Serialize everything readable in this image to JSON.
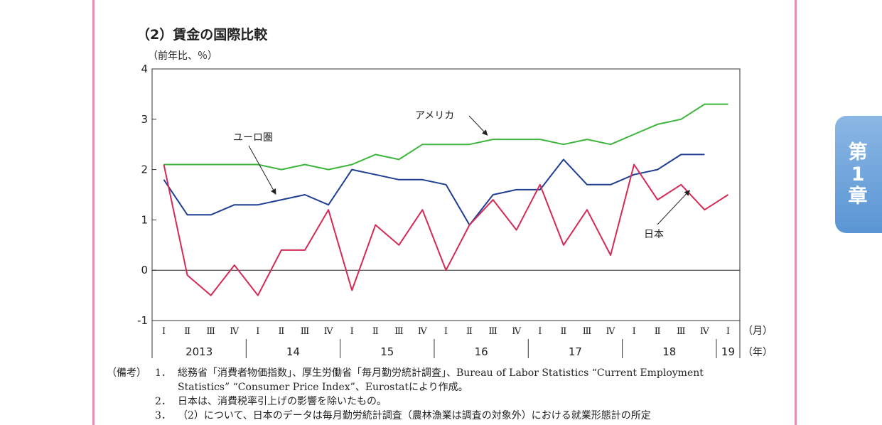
{
  "page": {
    "section_title": "（2）賃金の国際比較",
    "chapter_tab": [
      "第",
      "1",
      "章"
    ],
    "notes_label": "（備考）",
    "notes": [
      {
        "num": "1．",
        "lines": [
          "総務省「消費者物価指数」、厚生労働省「毎月勤労統計調査」、Bureau of Labor Statistics “Current Employment",
          "Statistics” “Consumer Price Index”、Eurostatにより作成。"
        ]
      },
      {
        "num": "2．",
        "lines": [
          "日本は、消費税率引上げの影響を除いたもの。"
        ]
      },
      {
        "num": "3．",
        "lines": [
          "（2）について、日本のデータは毎月勤労統計調査（農林漁業は調査の対象外）における就業形態計の所定"
        ]
      }
    ]
  },
  "chart_data": {
    "type": "line",
    "title": "",
    "ylabel": "（前年比、％）",
    "ylim": [
      -1,
      4
    ],
    "yticks": [
      4,
      3,
      2,
      1,
      0,
      -1
    ],
    "grid": false,
    "quarters": [
      "Ⅰ",
      "Ⅱ",
      "Ⅲ",
      "Ⅳ",
      "Ⅰ",
      "Ⅱ",
      "Ⅲ",
      "Ⅳ",
      "Ⅰ",
      "Ⅱ",
      "Ⅲ",
      "Ⅳ",
      "Ⅰ",
      "Ⅱ",
      "Ⅲ",
      "Ⅳ",
      "Ⅰ",
      "Ⅱ",
      "Ⅲ",
      "Ⅳ",
      "Ⅰ",
      "Ⅱ",
      "Ⅲ",
      "Ⅳ",
      "Ⅰ"
    ],
    "years": [
      "2013",
      "14",
      "15",
      "16",
      "17",
      "18",
      "19"
    ],
    "x_unit_month": "（月）",
    "x_unit_year": "（年）",
    "series": [
      {
        "name": "アメリカ",
        "color": "#3db53d",
        "values": [
          2.1,
          2.1,
          2.1,
          2.1,
          2.1,
          2.0,
          2.1,
          2.0,
          2.1,
          2.3,
          2.2,
          2.5,
          2.5,
          2.5,
          2.6,
          2.6,
          2.6,
          2.5,
          2.6,
          2.5,
          2.7,
          2.9,
          3.0,
          3.3,
          3.3
        ]
      },
      {
        "name": "ユーロ圏",
        "color": "#1f3f93",
        "values": [
          1.8,
          1.1,
          1.1,
          1.3,
          1.3,
          1.4,
          1.5,
          1.3,
          2.0,
          1.9,
          1.8,
          1.8,
          1.7,
          0.9,
          1.5,
          1.6,
          1.6,
          2.2,
          1.7,
          1.7,
          1.9,
          2.0,
          2.3,
          2.3,
          null
        ]
      },
      {
        "name": "日本",
        "color": "#d42a55",
        "values": [
          2.1,
          -0.1,
          -0.5,
          0.1,
          -0.5,
          0.4,
          0.4,
          1.2,
          -0.4,
          0.9,
          0.5,
          1.2,
          0.0,
          0.9,
          1.4,
          0.8,
          1.7,
          0.5,
          1.2,
          0.3,
          2.1,
          1.4,
          1.7,
          1.2,
          1.5
        ]
      }
    ],
    "annotations": [
      {
        "text": "アメリカ",
        "series": "アメリカ",
        "point_index": 14
      },
      {
        "text": "ユーロ圏",
        "series": "ユーロ圏",
        "point_index": 5
      },
      {
        "text": "日本",
        "series": "日本",
        "point_index": 22
      }
    ]
  }
}
